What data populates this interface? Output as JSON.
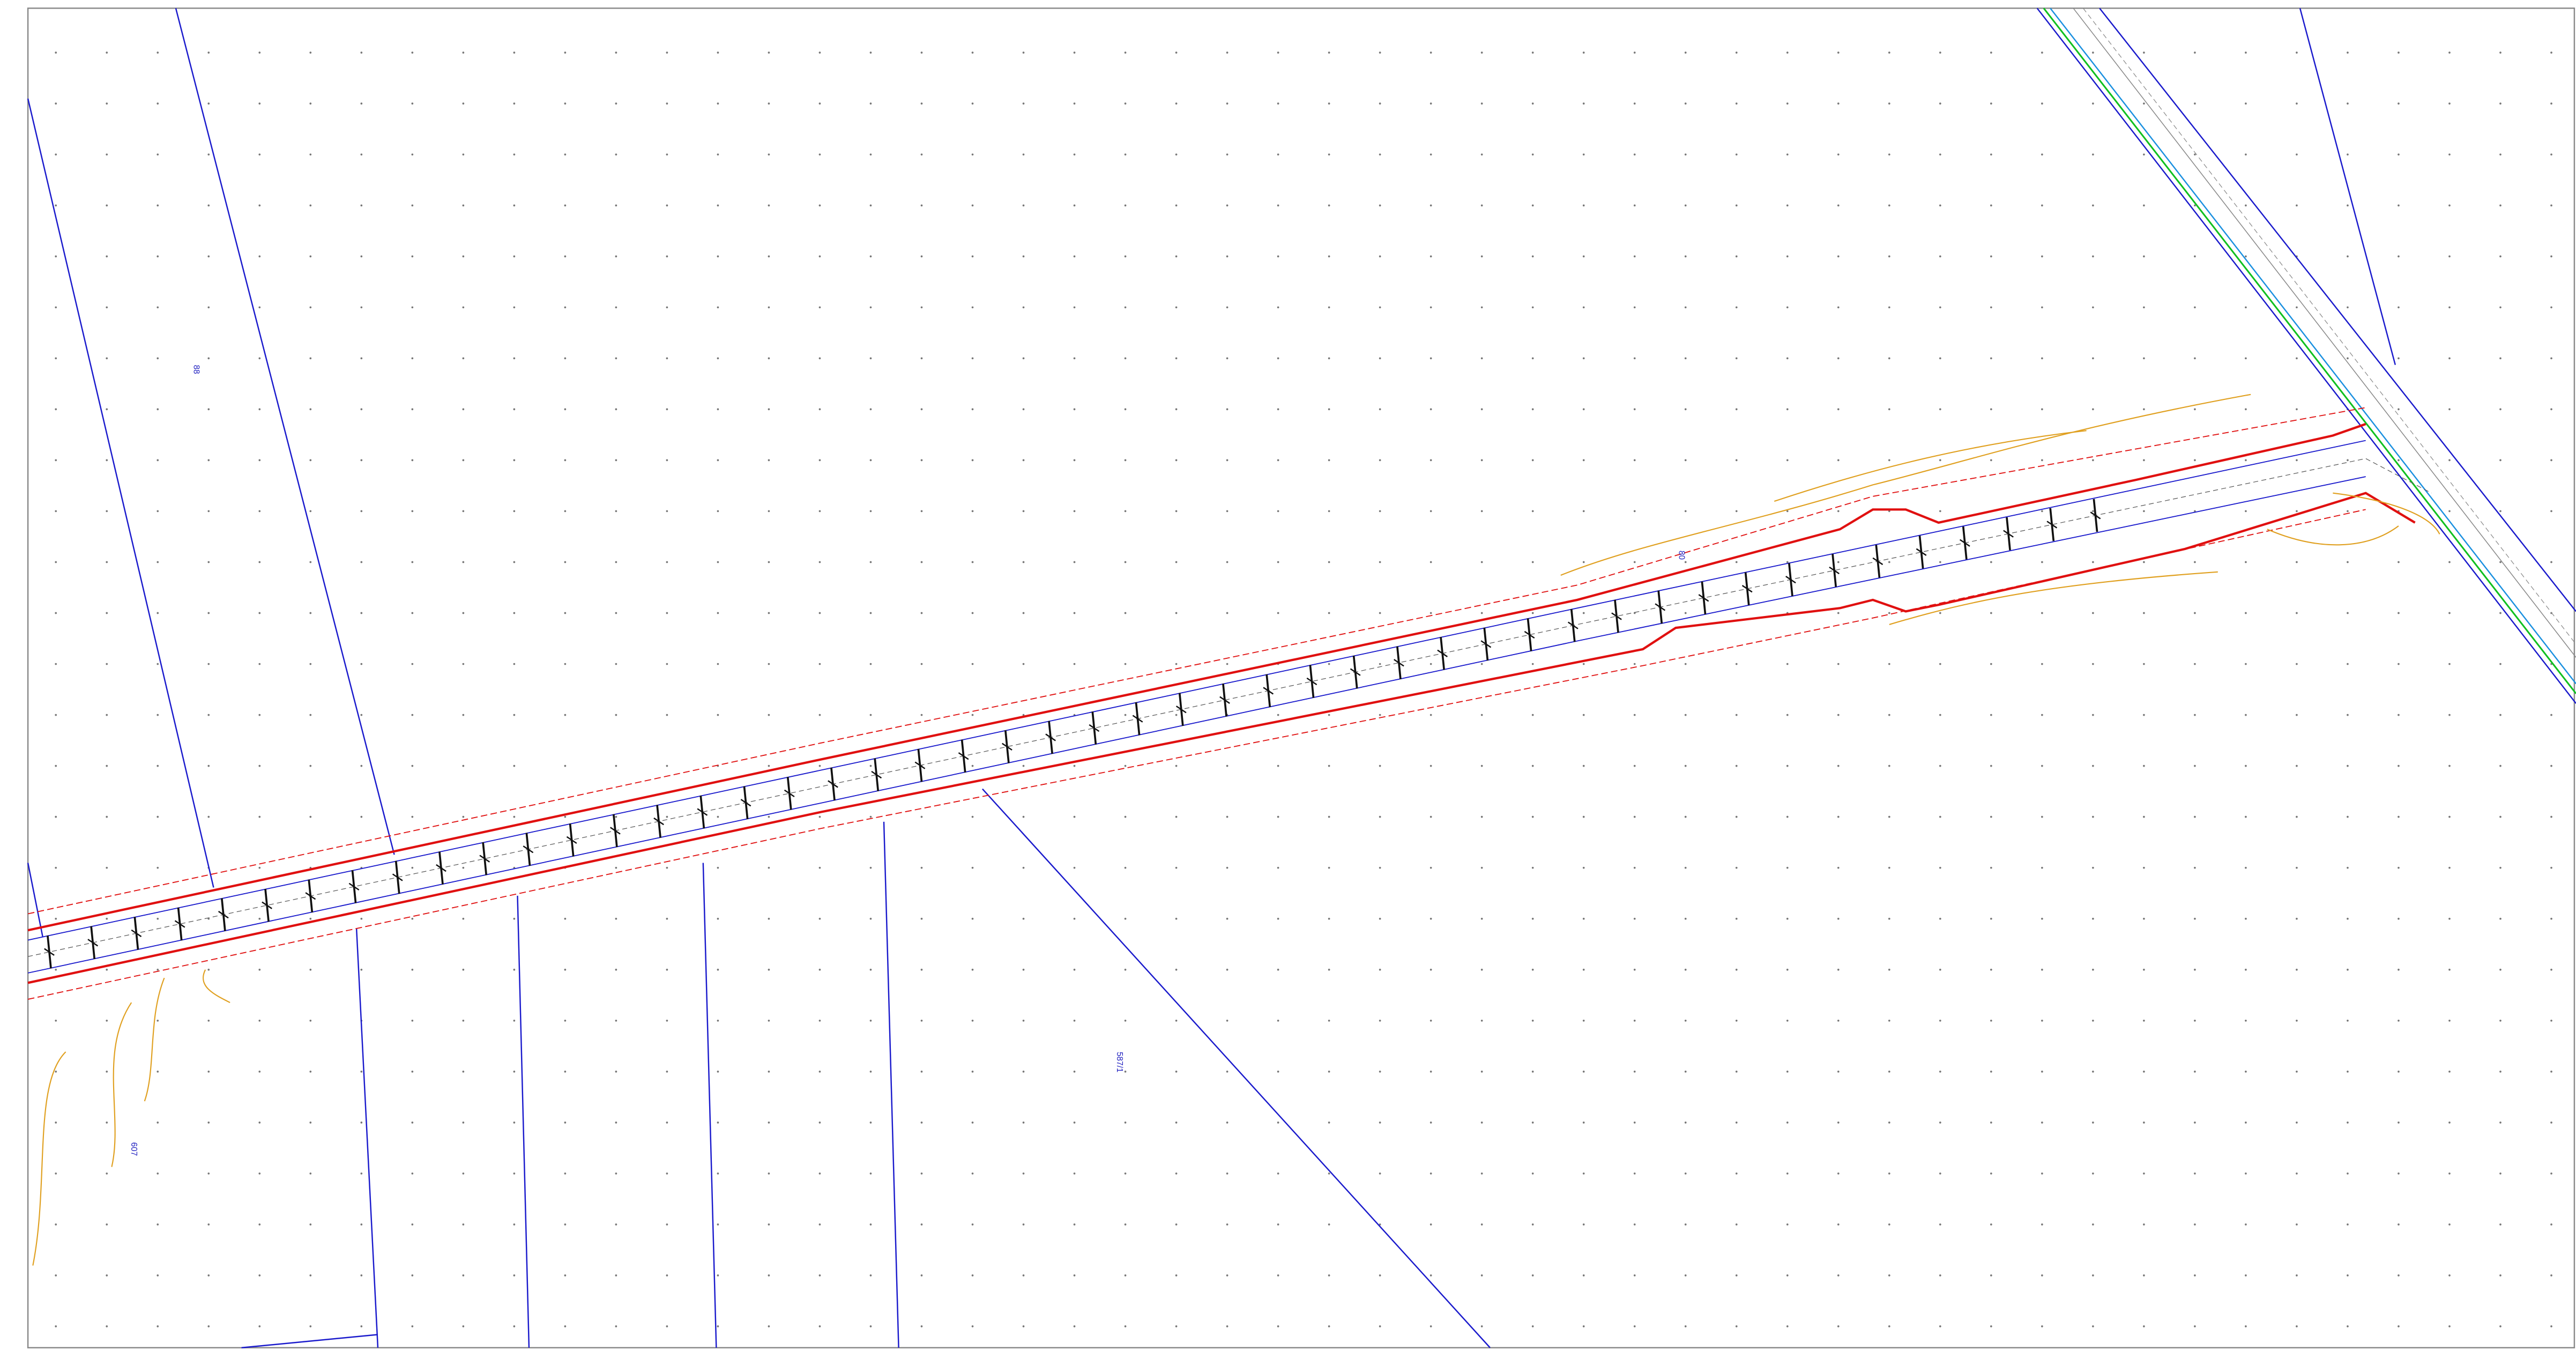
{
  "parcel_labels": [
    "88",
    "607",
    "587/1",
    "80"
  ]
}
